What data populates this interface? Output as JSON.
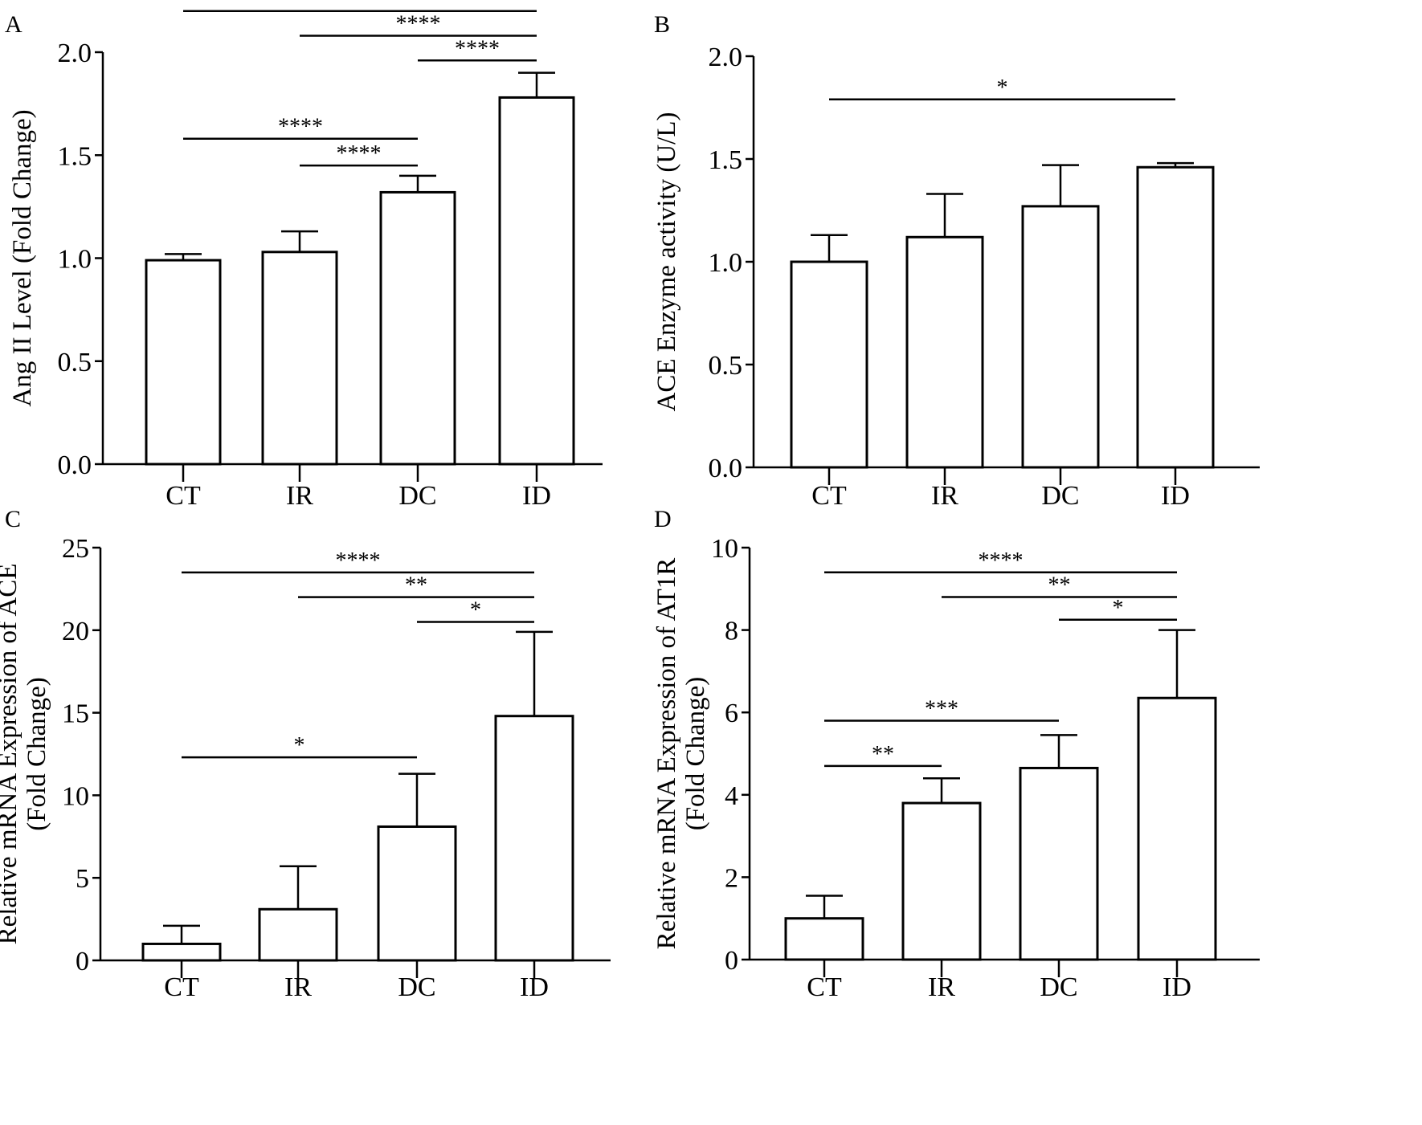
{
  "chart_data": [
    {
      "panel": "A",
      "type": "bar",
      "categories": [
        "CT",
        "IR",
        "DC",
        "ID"
      ],
      "values": [
        0.99,
        1.03,
        1.32,
        1.78
      ],
      "errors": [
        0.03,
        0.1,
        0.08,
        0.12
      ],
      "ylabel": [
        "Ang II Level (Fold Change)"
      ],
      "ylim": [
        0,
        2.0
      ],
      "yticks": [
        0,
        0.5,
        1.0,
        1.5,
        2.0
      ],
      "ytick_labels": [
        "0.0",
        "0.5",
        "1.0",
        "1.5",
        "2.0"
      ],
      "significance": [
        {
          "from": "CT",
          "to": "ID",
          "label": "****",
          "level": 2.2
        },
        {
          "from": "IR",
          "to": "ID",
          "label": "****",
          "level": 2.08
        },
        {
          "from": "DC",
          "to": "ID",
          "label": "****",
          "level": 1.96
        },
        {
          "from": "CT",
          "to": "DC",
          "label": "****",
          "level": 1.58
        },
        {
          "from": "IR",
          "to": "DC",
          "label": "****",
          "level": 1.45
        }
      ]
    },
    {
      "panel": "B",
      "type": "bar",
      "categories": [
        "CT",
        "IR",
        "DC",
        "ID"
      ],
      "values": [
        1.0,
        1.12,
        1.27,
        1.46
      ],
      "errors": [
        0.13,
        0.21,
        0.2,
        0.02
      ],
      "ylabel": [
        "ACE Enzyme activity (U/L)"
      ],
      "ylim": [
        0,
        2.0
      ],
      "yticks": [
        0,
        0.5,
        1.0,
        1.5,
        2.0
      ],
      "ytick_labels": [
        "0.0",
        "0.5",
        "1.0",
        "1.5",
        "2.0"
      ],
      "significance": [
        {
          "from": "CT",
          "to": "ID",
          "label": "*",
          "level": 1.79
        }
      ]
    },
    {
      "panel": "C",
      "type": "bar",
      "categories": [
        "CT",
        "IR",
        "DC",
        "ID"
      ],
      "values": [
        1.0,
        3.1,
        8.1,
        14.8
      ],
      "errors": [
        1.1,
        2.6,
        3.2,
        5.1
      ],
      "ylabel": [
        "Relative mRNA Expression of ACE",
        "(Fold Change)"
      ],
      "ylim": [
        0,
        25
      ],
      "yticks": [
        0,
        5,
        10,
        15,
        20,
        25
      ],
      "ytick_labels": [
        "0",
        "5",
        "10",
        "15",
        "20",
        "25"
      ],
      "significance": [
        {
          "from": "CT",
          "to": "ID",
          "label": "****",
          "level": 23.5
        },
        {
          "from": "IR",
          "to": "ID",
          "label": "**",
          "level": 22.0
        },
        {
          "from": "DC",
          "to": "ID",
          "label": "*",
          "level": 20.5
        },
        {
          "from": "CT",
          "to": "DC",
          "label": "*",
          "level": 12.3
        }
      ]
    },
    {
      "panel": "D",
      "type": "bar",
      "categories": [
        "CT",
        "IR",
        "DC",
        "ID"
      ],
      "values": [
        1.0,
        3.8,
        4.65,
        6.35
      ],
      "errors": [
        0.55,
        0.6,
        0.8,
        1.65
      ],
      "ylabel": [
        "Relative mRNA Expression of AT1R",
        "(Fold Change)"
      ],
      "ylim": [
        0,
        10
      ],
      "yticks": [
        0,
        2,
        4,
        6,
        8,
        10
      ],
      "ytick_labels": [
        "0",
        "2",
        "4",
        "6",
        "8",
        "10"
      ],
      "significance": [
        {
          "from": "CT",
          "to": "ID",
          "label": "****",
          "level": 9.4
        },
        {
          "from": "IR",
          "to": "ID",
          "label": "**",
          "level": 8.8
        },
        {
          "from": "DC",
          "to": "ID",
          "label": "*",
          "level": 8.25
        },
        {
          "from": "CT",
          "to": "DC",
          "label": "***",
          "level": 5.8
        },
        {
          "from": "CT",
          "to": "IR",
          "label": "**",
          "level": 4.7
        }
      ]
    }
  ]
}
